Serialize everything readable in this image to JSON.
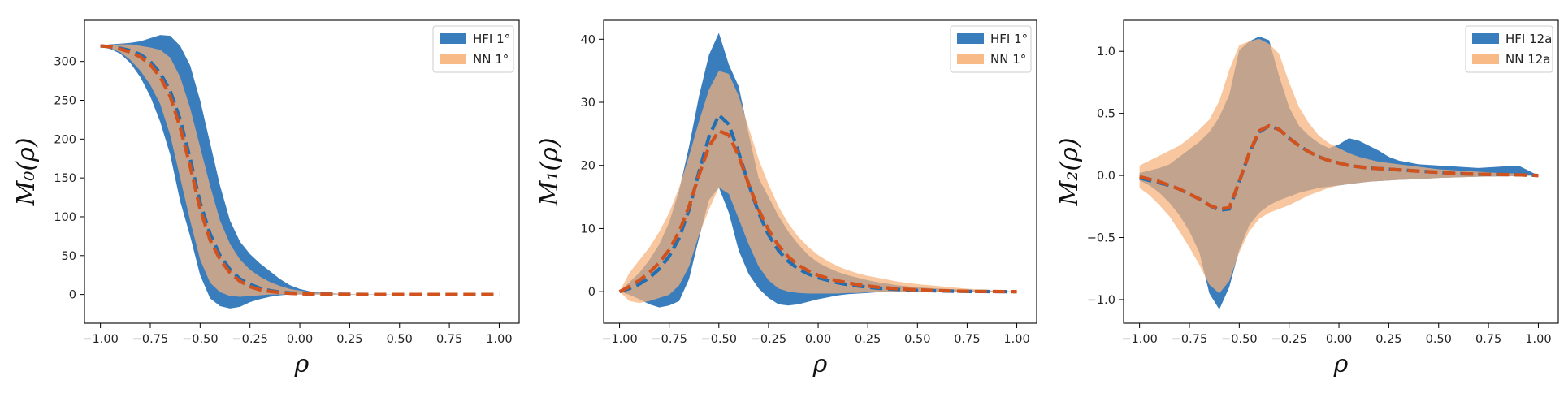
{
  "colors": {
    "hfi": "#1f77b4",
    "nn": "#ff7f0e",
    "hfi_band": "#3a7dbd",
    "nn_band": "#f7b27a",
    "overlap": "#a88d72",
    "hfi_mean": "#1f6fb5",
    "nn_mean": "#d2521d"
  },
  "chart_data": [
    {
      "type": "area",
      "xlabel": "ρ",
      "ylabel": "M₀(ρ)",
      "xlim": [
        -1.08,
        1.1
      ],
      "ylim": [
        -37,
        353
      ],
      "xticks": [
        -1.0,
        -0.75,
        -0.5,
        -0.25,
        0.0,
        0.25,
        0.5,
        0.75,
        1.0
      ],
      "xtick_labels": [
        "−1.00",
        "−0.75",
        "−0.50",
        "−0.25",
        "0.00",
        "0.25",
        "0.50",
        "0.75",
        "1.00"
      ],
      "yticks": [
        0,
        50,
        100,
        150,
        200,
        250,
        300
      ],
      "ytick_labels": [
        "0",
        "50",
        "100",
        "150",
        "200",
        "250",
        "300"
      ],
      "legend": {
        "position": "upper right",
        "entries": [
          "HFI 1°",
          "NN 1°"
        ]
      },
      "x": [
        -1.0,
        -0.95,
        -0.9,
        -0.85,
        -0.8,
        -0.75,
        -0.7,
        -0.65,
        -0.6,
        -0.55,
        -0.5,
        -0.45,
        -0.4,
        -0.35,
        -0.3,
        -0.25,
        -0.2,
        -0.15,
        -0.1,
        -0.05,
        0.0,
        0.05,
        0.1,
        0.15,
        0.2,
        0.25,
        0.3,
        0.4,
        0.5,
        0.6,
        0.7,
        0.8,
        0.9,
        1.0
      ],
      "series": [
        {
          "name": "HFI 1°",
          "mean": [
            320,
            319,
            317,
            314,
            309,
            300,
            285,
            262,
            225,
            175,
            118,
            78,
            50,
            32,
            20,
            13,
            8,
            5,
            3,
            2,
            1.5,
            1,
            0.7,
            0.4,
            0.3,
            0.2,
            0.1,
            0,
            0,
            0,
            0,
            0,
            0,
            0
          ],
          "upper": [
            321,
            322,
            323,
            324,
            326,
            330,
            334,
            333,
            320,
            295,
            250,
            195,
            140,
            95,
            68,
            52,
            40,
            30,
            20,
            12,
            7,
            4,
            2.5,
            1.5,
            1,
            0.5,
            0.3,
            0.2,
            0.1,
            0.1,
            0,
            0,
            0,
            0
          ],
          "lower": [
            319,
            316,
            310,
            298,
            280,
            255,
            222,
            180,
            120,
            75,
            25,
            -5,
            -15,
            -18,
            -16,
            -10,
            -6,
            -3,
            -1,
            0,
            0,
            0,
            0,
            0,
            0,
            0,
            0,
            0,
            0,
            0,
            0,
            0,
            0,
            0
          ]
        },
        {
          "name": "NN 1°",
          "mean": [
            320,
            319,
            316,
            312,
            306,
            296,
            280,
            255,
            215,
            165,
            110,
            70,
            45,
            28,
            17,
            10,
            6,
            4,
            2.5,
            1.5,
            1,
            0.6,
            0.4,
            0.3,
            0.2,
            0.1,
            0,
            0,
            0,
            0,
            0,
            0,
            0,
            0
          ],
          "upper": [
            321,
            321,
            322,
            322,
            320,
            318,
            315,
            305,
            280,
            240,
            190,
            140,
            95,
            65,
            45,
            32,
            23,
            16,
            11,
            7,
            5,
            3,
            2,
            1.5,
            1,
            0.6,
            0.4,
            0.2,
            0.1,
            0,
            0,
            0,
            0,
            0
          ],
          "lower": [
            319,
            317,
            312,
            302,
            288,
            270,
            245,
            205,
            150,
            95,
            45,
            15,
            3,
            -2,
            -3,
            -2,
            -1,
            0,
            0,
            0,
            0,
            0,
            0,
            0,
            0,
            0,
            0,
            0,
            0,
            0,
            0,
            0,
            0,
            0
          ]
        }
      ]
    },
    {
      "type": "area",
      "xlabel": "ρ",
      "ylabel": "M₁(ρ)",
      "xlim": [
        -1.08,
        1.1
      ],
      "ylim": [
        -5,
        43
      ],
      "xticks": [
        -1.0,
        -0.75,
        -0.5,
        -0.25,
        0.0,
        0.25,
        0.5,
        0.75,
        1.0
      ],
      "xtick_labels": [
        "−1.00",
        "−0.75",
        "−0.50",
        "−0.25",
        "0.00",
        "0.25",
        "0.50",
        "0.75",
        "1.00"
      ],
      "yticks": [
        0,
        10,
        20,
        30,
        40
      ],
      "ytick_labels": [
        "0",
        "10",
        "20",
        "30",
        "40"
      ],
      "legend": {
        "position": "upper right",
        "entries": [
          "HFI 1°",
          "NN 1°"
        ]
      },
      "x": [
        -1.0,
        -0.95,
        -0.9,
        -0.85,
        -0.8,
        -0.75,
        -0.7,
        -0.65,
        -0.6,
        -0.55,
        -0.5,
        -0.45,
        -0.4,
        -0.35,
        -0.3,
        -0.25,
        -0.2,
        -0.15,
        -0.1,
        -0.05,
        0.0,
        0.05,
        0.1,
        0.15,
        0.2,
        0.25,
        0.3,
        0.4,
        0.5,
        0.6,
        0.7,
        0.8,
        0.9,
        1.0
      ],
      "series": [
        {
          "name": "HFI 1°",
          "mean": [
            0,
            0.5,
            1.2,
            2.2,
            3.6,
            5.6,
            8.5,
            13,
            19,
            24.5,
            28,
            26.5,
            22,
            17,
            12.5,
            9,
            6.5,
            4.8,
            3.6,
            2.8,
            2.2,
            1.8,
            1.4,
            1.1,
            0.9,
            0.7,
            0.55,
            0.35,
            0.2,
            0.12,
            0.06,
            0.03,
            0.01,
            0
          ],
          "upper": [
            0,
            1.5,
            3,
            5,
            7.5,
            11,
            16,
            23,
            31,
            37.5,
            41,
            36,
            32.5,
            25,
            18,
            15,
            12,
            9.5,
            7.5,
            5.8,
            4.6,
            3.8,
            3.1,
            2.6,
            2.2,
            1.8,
            1.5,
            1.0,
            0.7,
            0.5,
            0.35,
            0.2,
            0.1,
            0
          ],
          "lower": [
            0,
            -0.5,
            -1.2,
            -2,
            -2.5,
            -2.2,
            -1.5,
            2,
            8.5,
            14.5,
            16.5,
            12.5,
            6.5,
            2.8,
            0.5,
            -1,
            -2,
            -2.2,
            -2,
            -1.6,
            -1.2,
            -0.9,
            -0.6,
            -0.4,
            -0.3,
            -0.2,
            -0.1,
            0,
            0,
            0,
            0,
            0,
            0,
            0
          ]
        },
        {
          "name": "NN 1°",
          "mean": [
            0,
            0.8,
            1.8,
            3,
            4.6,
            6.6,
            9.5,
            13.5,
            18.5,
            23,
            25.5,
            24.8,
            21.5,
            17,
            13,
            9.8,
            7.3,
            5.5,
            4.2,
            3.3,
            2.6,
            2.1,
            1.7,
            1.4,
            1.1,
            0.9,
            0.7,
            0.45,
            0.28,
            0.16,
            0.08,
            0.04,
            0.02,
            0
          ],
          "upper": [
            0,
            3,
            5,
            7,
            9.5,
            12.5,
            16.5,
            21.5,
            27,
            32,
            35,
            34.5,
            31,
            26,
            21,
            17,
            13.5,
            10.8,
            8.7,
            7.1,
            5.8,
            4.8,
            4.0,
            3.4,
            2.9,
            2.5,
            2.2,
            1.6,
            1.2,
            0.9,
            0.6,
            0.35,
            0.15,
            0
          ],
          "lower": [
            0,
            -1.5,
            -1.8,
            -1.5,
            -1,
            -0.5,
            1,
            4,
            9,
            13,
            16.5,
            15.5,
            11.5,
            7.5,
            4,
            1.8,
            0.5,
            0,
            -0.2,
            -0.3,
            -0.3,
            -0.3,
            -0.3,
            -0.2,
            -0.2,
            -0.1,
            -0.1,
            0,
            0,
            0,
            0,
            0,
            0,
            0
          ]
        }
      ]
    },
    {
      "type": "area",
      "xlabel": "ρ",
      "ylabel": "M₂(ρ)",
      "xlim": [
        -1.08,
        1.1
      ],
      "ylim": [
        -1.19,
        1.25
      ],
      "xticks": [
        -1.0,
        -0.75,
        -0.5,
        -0.25,
        0.0,
        0.25,
        0.5,
        0.75,
        1.0
      ],
      "xtick_labels": [
        "−1.00",
        "−0.75",
        "−0.50",
        "−0.25",
        "0.00",
        "0.25",
        "0.50",
        "0.75",
        "1.00"
      ],
      "yticks": [
        -1.0,
        -0.5,
        0.0,
        0.5,
        1.0
      ],
      "ytick_labels": [
        "−1.0",
        "−0.5",
        "0.0",
        "0.5",
        "1.0"
      ],
      "legend": {
        "position": "upper right",
        "entries": [
          "HFI 12a",
          "NN 12a"
        ]
      },
      "x": [
        -1.0,
        -0.95,
        -0.9,
        -0.85,
        -0.8,
        -0.75,
        -0.7,
        -0.65,
        -0.6,
        -0.55,
        -0.5,
        -0.45,
        -0.4,
        -0.35,
        -0.3,
        -0.25,
        -0.2,
        -0.15,
        -0.1,
        -0.05,
        0.0,
        0.05,
        0.1,
        0.15,
        0.2,
        0.25,
        0.3,
        0.4,
        0.5,
        0.6,
        0.7,
        0.8,
        0.9,
        1.0
      ],
      "series": [
        {
          "name": "HFI 12a",
          "mean": [
            -0.02,
            -0.04,
            -0.06,
            -0.08,
            -0.11,
            -0.15,
            -0.19,
            -0.24,
            -0.28,
            -0.27,
            -0.05,
            0.18,
            0.35,
            0.4,
            0.37,
            0.3,
            0.24,
            0.19,
            0.15,
            0.12,
            0.1,
            0.08,
            0.07,
            0.06,
            0.055,
            0.05,
            0.045,
            0.035,
            0.025,
            0.015,
            0.01,
            0.008,
            0.005,
            0
          ],
          "upper": [
            0.02,
            0.04,
            0.06,
            0.09,
            0.15,
            0.21,
            0.27,
            0.35,
            0.47,
            0.65,
            1.01,
            1.08,
            1.12,
            1.09,
            0.8,
            0.55,
            0.4,
            0.32,
            0.26,
            0.22,
            0.25,
            0.3,
            0.28,
            0.24,
            0.2,
            0.15,
            0.12,
            0.09,
            0.08,
            0.07,
            0.06,
            0.07,
            0.08,
            0
          ],
          "lower": [
            -0.04,
            -0.08,
            -0.14,
            -0.22,
            -0.32,
            -0.45,
            -0.62,
            -0.95,
            -1.08,
            -0.9,
            -0.6,
            -0.4,
            -0.3,
            -0.24,
            -0.2,
            -0.17,
            -0.14,
            -0.12,
            -0.1,
            -0.09,
            -0.08,
            -0.07,
            -0.06,
            -0.05,
            -0.045,
            -0.04,
            -0.035,
            -0.03,
            -0.02,
            -0.015,
            -0.01,
            -0.008,
            -0.005,
            0
          ]
        },
        {
          "name": "NN 12a",
          "mean": [
            -0.01,
            -0.03,
            -0.05,
            -0.08,
            -0.11,
            -0.15,
            -0.19,
            -0.24,
            -0.27,
            -0.26,
            -0.05,
            0.18,
            0.36,
            0.4,
            0.37,
            0.3,
            0.24,
            0.19,
            0.15,
            0.12,
            0.1,
            0.08,
            0.07,
            0.06,
            0.055,
            0.05,
            0.045,
            0.035,
            0.025,
            0.015,
            0.01,
            0.008,
            0.005,
            0
          ],
          "upper": [
            0.08,
            0.12,
            0.16,
            0.2,
            0.24,
            0.3,
            0.37,
            0.45,
            0.6,
            0.85,
            1.05,
            1.08,
            1.1,
            1.06,
            0.98,
            0.75,
            0.55,
            0.42,
            0.32,
            0.26,
            0.22,
            0.18,
            0.15,
            0.13,
            0.11,
            0.1,
            0.09,
            0.07,
            0.05,
            0.04,
            0.03,
            0.02,
            0.015,
            0
          ],
          "lower": [
            -0.1,
            -0.16,
            -0.24,
            -0.33,
            -0.45,
            -0.58,
            -0.72,
            -0.88,
            -0.95,
            -0.85,
            -0.62,
            -0.45,
            -0.35,
            -0.3,
            -0.27,
            -0.24,
            -0.2,
            -0.16,
            -0.13,
            -0.1,
            -0.08,
            -0.07,
            -0.06,
            -0.05,
            -0.045,
            -0.04,
            -0.035,
            -0.03,
            -0.02,
            -0.015,
            -0.01,
            -0.008,
            -0.005,
            0
          ]
        }
      ]
    }
  ]
}
